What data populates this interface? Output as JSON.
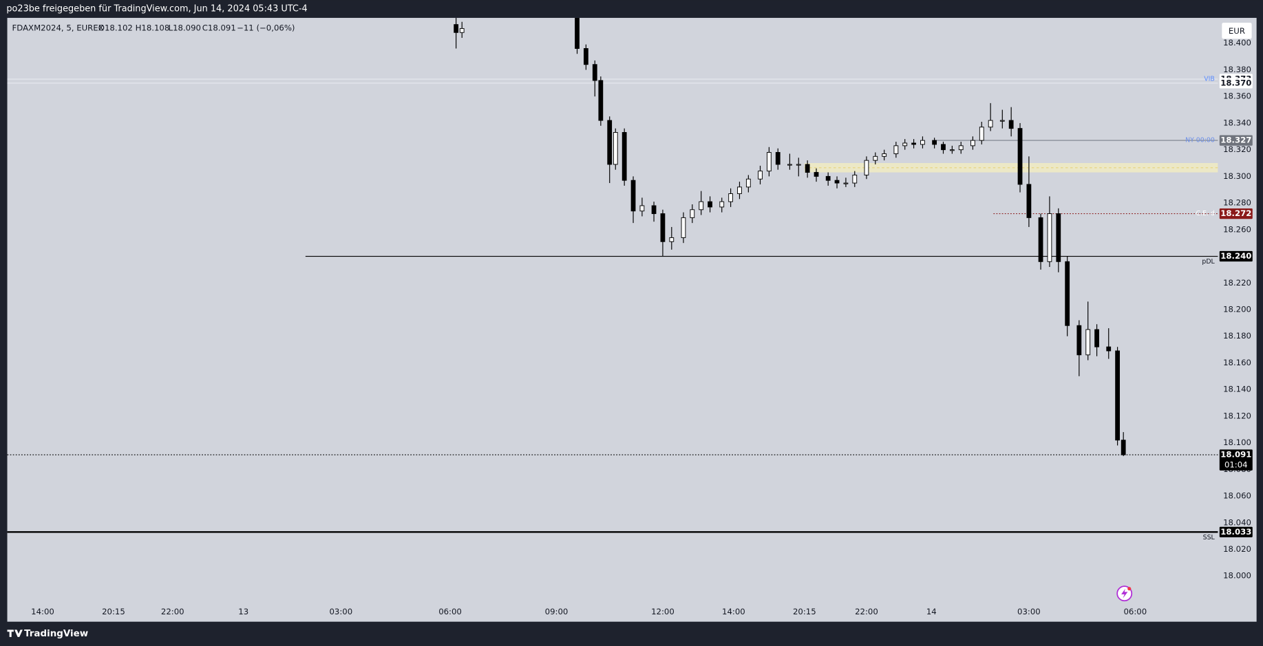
{
  "header": {
    "title": "po23be freigegeben für TradingView.com, Jun 14, 2024 05:43 UTC-4"
  },
  "legend": {
    "symbol": "FDAXM2024, 5, EUREX",
    "open": "O18.102",
    "high": "H18.108",
    "low": "L18.090",
    "close": "C18.091",
    "change": "−11 (−0,06%)"
  },
  "currency": "EUR",
  "footer": {
    "brand": "TradingView"
  },
  "chart_data": {
    "type": "candlestick",
    "up_color": "#ffffff",
    "down_color": "#000000",
    "xlim": [
      0,
      410
    ],
    "xticks": [
      {
        "value": 12,
        "label": "14:00"
      },
      {
        "value": 36,
        "label": "20:15"
      },
      {
        "value": 56,
        "label": "22:00"
      },
      {
        "value": 80,
        "label": "13"
      },
      {
        "value": 113,
        "label": "03:00"
      },
      {
        "value": 150,
        "label": "06:00"
      },
      {
        "value": 186,
        "label": "09:00"
      },
      {
        "value": 222,
        "label": "12:00"
      },
      {
        "value": 246,
        "label": "14:00"
      },
      {
        "value": 270,
        "label": "20:15"
      },
      {
        "value": 291,
        "label": "22:00"
      },
      {
        "value": 313,
        "label": "14"
      },
      {
        "value": 346,
        "label": "03:00"
      },
      {
        "value": 382,
        "label": "06:00"
      }
    ],
    "ylim": [
      17.982,
      18.419
    ],
    "yticks": [
      {
        "value": 18.0,
        "label": "18.000"
      },
      {
        "value": 18.02,
        "label": "18.020"
      },
      {
        "value": 18.04,
        "label": "18.040"
      },
      {
        "value": 18.06,
        "label": "18.060"
      },
      {
        "value": 18.08,
        "label": "18.080"
      },
      {
        "value": 18.1,
        "label": "18.100"
      },
      {
        "value": 18.12,
        "label": "18.120"
      },
      {
        "value": 18.14,
        "label": "18.140"
      },
      {
        "value": 18.16,
        "label": "18.160"
      },
      {
        "value": 18.18,
        "label": "18.180"
      },
      {
        "value": 18.2,
        "label": "18.200"
      },
      {
        "value": 18.22,
        "label": "18.220"
      },
      {
        "value": 18.24,
        "label": "18.240"
      },
      {
        "value": 18.26,
        "label": "18.260"
      },
      {
        "value": 18.28,
        "label": "18.280"
      },
      {
        "value": 18.3,
        "label": "18.300"
      },
      {
        "value": 18.32,
        "label": "18.320"
      },
      {
        "value": 18.34,
        "label": "18.340"
      },
      {
        "value": 18.36,
        "label": "18.360"
      },
      {
        "value": 18.38,
        "label": "18.380"
      },
      {
        "value": 18.4,
        "label": "18.400"
      }
    ],
    "x": [
      152,
      154,
      193,
      196,
      199,
      201,
      204,
      206,
      209,
      212,
      215,
      219,
      222,
      225,
      229,
      232,
      235,
      238,
      242,
      245,
      248,
      251,
      255,
      258,
      261,
      265,
      268,
      271,
      274,
      278,
      281,
      284,
      287,
      291,
      294,
      297,
      301,
      304,
      307,
      310,
      314,
      317,
      320,
      323,
      327,
      330,
      333,
      337,
      340,
      343,
      346,
      350,
      353,
      356,
      359,
      363,
      366,
      369,
      373,
      376,
      378
    ],
    "open": [
      18.414,
      18.408,
      18.42,
      18.396,
      18.384,
      18.372,
      18.342,
      18.309,
      18.333,
      18.297,
      18.274,
      18.278,
      18.272,
      18.251,
      18.254,
      18.269,
      18.275,
      18.281,
      18.277,
      18.281,
      18.287,
      18.292,
      18.298,
      18.304,
      18.318,
      18.309,
      18.309,
      18.309,
      18.303,
      18.3,
      18.297,
      18.295,
      18.295,
      18.301,
      18.312,
      18.315,
      18.317,
      18.323,
      18.325,
      18.324,
      18.327,
      18.324,
      18.32,
      18.32,
      18.323,
      18.327,
      18.337,
      18.342,
      18.342,
      18.336,
      18.294,
      18.269,
      18.236,
      18.272,
      18.236,
      18.188,
      18.166,
      18.185,
      18.172,
      18.169,
      18.102
    ],
    "high": [
      18.419,
      18.416,
      18.425,
      18.399,
      18.387,
      18.375,
      18.345,
      18.336,
      18.336,
      18.3,
      18.284,
      18.281,
      18.275,
      18.262,
      18.273,
      18.279,
      18.289,
      18.285,
      18.284,
      18.291,
      18.296,
      18.301,
      18.308,
      18.322,
      18.321,
      18.317,
      18.314,
      18.312,
      18.306,
      18.303,
      18.3,
      18.299,
      18.304,
      18.315,
      18.318,
      18.32,
      18.326,
      18.328,
      18.328,
      18.33,
      18.329,
      18.326,
      18.323,
      18.326,
      18.33,
      18.341,
      18.355,
      18.35,
      18.352,
      18.34,
      18.315,
      18.272,
      18.285,
      18.276,
      18.24,
      18.192,
      18.206,
      18.189,
      18.186,
      18.172,
      18.108
    ],
    "low": [
      18.396,
      18.404,
      18.392,
      18.38,
      18.36,
      18.338,
      18.295,
      18.305,
      18.293,
      18.265,
      18.27,
      18.266,
      18.24,
      18.245,
      18.25,
      18.265,
      18.271,
      18.273,
      18.273,
      18.277,
      18.283,
      18.288,
      18.294,
      18.3,
      18.305,
      18.305,
      18.3,
      18.299,
      18.296,
      18.293,
      18.291,
      18.292,
      18.292,
      18.298,
      18.309,
      18.312,
      18.314,
      18.32,
      18.321,
      18.321,
      18.321,
      18.317,
      18.317,
      18.317,
      18.32,
      18.324,
      18.334,
      18.336,
      18.33,
      18.288,
      18.262,
      18.23,
      18.232,
      18.228,
      18.18,
      18.15,
      18.162,
      18.165,
      18.163,
      18.098,
      18.09
    ],
    "close": [
      18.408,
      18.411,
      18.396,
      18.384,
      18.372,
      18.342,
      18.309,
      18.333,
      18.297,
      18.274,
      18.278,
      18.272,
      18.251,
      18.254,
      18.269,
      18.275,
      18.281,
      18.277,
      18.281,
      18.287,
      18.292,
      18.298,
      18.304,
      18.318,
      18.309,
      18.309,
      18.309,
      18.303,
      18.3,
      18.297,
      18.295,
      18.295,
      18.301,
      18.312,
      18.315,
      18.317,
      18.323,
      18.325,
      18.324,
      18.327,
      18.324,
      18.32,
      18.32,
      18.323,
      18.327,
      18.337,
      18.342,
      18.342,
      18.336,
      18.294,
      18.269,
      18.236,
      18.272,
      18.236,
      18.188,
      18.166,
      18.185,
      18.172,
      18.169,
      18.102,
      18.091
    ],
    "zones": [
      {
        "low": 18.303,
        "high": 18.31,
        "start": 270,
        "color": "#f3ecc0"
      }
    ],
    "levels": [
      {
        "value": 18.373,
        "label": "18.373",
        "tag": "VIB",
        "tag_color": "#5b8cff",
        "line_color": "#e8eaf0",
        "line_style": "solid",
        "box_color": "#ffffff",
        "text_color": "#131722"
      },
      {
        "value": 18.37,
        "label": "18.370",
        "line_color": "#e8eaf0",
        "line_style": "solid",
        "box_color": "#ffffff",
        "text_color": "#131722"
      },
      {
        "value": 18.327,
        "label": "18.327",
        "tag": "NY 00:00",
        "tag_color": "#6c8fe8",
        "start": 314,
        "line_color": "#7a7f8a",
        "line_style": "solid",
        "box_color": "#6f737c",
        "text_color": "#ffffff"
      },
      {
        "value": 18.272,
        "label": "18.272",
        "tag": "C.E. d",
        "tag_color": "#ffffff",
        "start": 334,
        "line_color": "#8b1a1a",
        "line_style": "dotted",
        "box_color": "#8b1a1a",
        "text_color": "#ffffff"
      },
      {
        "value": 18.24,
        "label": "18.240",
        "tag": "pDL",
        "tag_color": "#131722",
        "start": 101,
        "line_color": "#000000",
        "line_style": "solid",
        "box_color": "#000000",
        "text_color": "#ffffff"
      },
      {
        "value": 18.091,
        "label": "18.091",
        "sublabel": "01:04",
        "line_color": "#000000",
        "line_style": "dotted",
        "box_color": "#000000",
        "text_color": "#ffffff"
      },
      {
        "value": 18.033,
        "label": "18.033",
        "tag": "SSL",
        "tag_color": "#131722",
        "line_color": "#000000",
        "line_style": "thick",
        "box_color": "#000000",
        "text_color": "#ffffff"
      }
    ]
  }
}
